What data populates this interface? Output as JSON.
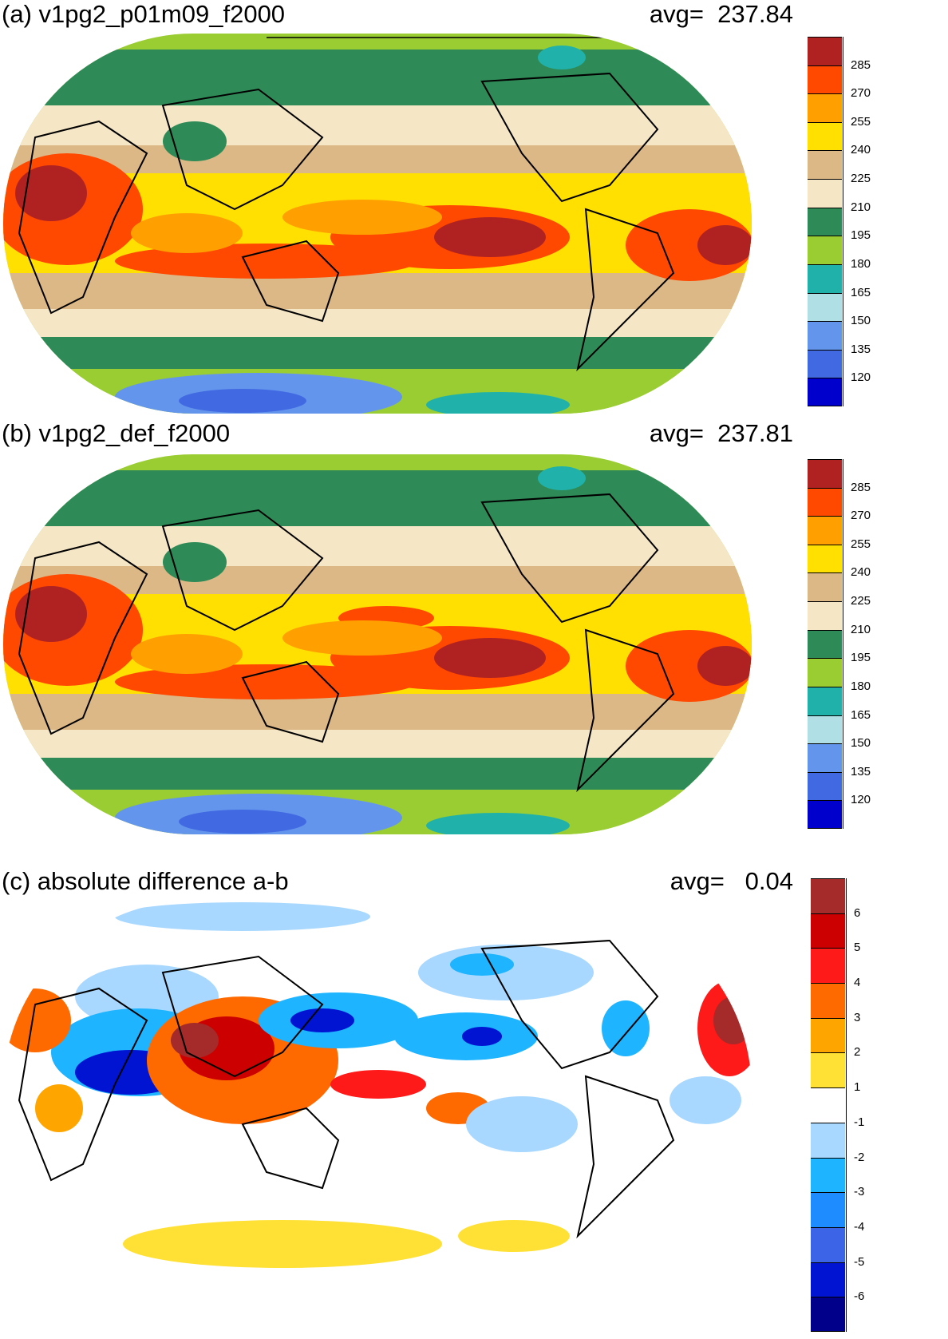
{
  "panels": [
    {
      "title": "(a) v1pg2_p01m09_f2000",
      "avg_label": "avg=",
      "avg_value": "237.84",
      "colorbar": {
        "labels": [
          "285",
          "270",
          "255",
          "240",
          "225",
          "210",
          "195",
          "180",
          "165",
          "150",
          "135",
          "120"
        ],
        "colors": [
          "#b02222",
          "#ff4800",
          "#ffa000",
          "#ffe000",
          "#ddb887",
          "#f5e6c6",
          "#2e8b57",
          "#9acd32",
          "#20b2aa",
          "#b0e0e6",
          "#6495ed",
          "#4169e1",
          "#0000cd"
        ]
      }
    },
    {
      "title": "(b) v1pg2_def_f2000",
      "avg_label": "avg=",
      "avg_value": "237.81",
      "colorbar": {
        "labels": [
          "285",
          "270",
          "255",
          "240",
          "225",
          "210",
          "195",
          "180",
          "165",
          "150",
          "135",
          "120"
        ],
        "colors": [
          "#b02222",
          "#ff4800",
          "#ffa000",
          "#ffe000",
          "#ddb887",
          "#f5e6c6",
          "#2e8b57",
          "#9acd32",
          "#20b2aa",
          "#b0e0e6",
          "#6495ed",
          "#4169e1",
          "#0000cd"
        ]
      }
    },
    {
      "title": "(c) absolute difference a-b",
      "avg_label": "avg=",
      "avg_value": "0.04",
      "colorbar": {
        "labels": [
          "6",
          "5",
          "4",
          "3",
          "2",
          "1",
          "-1",
          "-2",
          "-3",
          "-4",
          "-5",
          "-6"
        ],
        "colors": [
          "#a52a2a",
          "#cd0000",
          "#ff1a1a",
          "#ff6a00",
          "#ffa500",
          "#ffe135",
          "#ffffff",
          "#a8d8ff",
          "#1eb4ff",
          "#1e8cff",
          "#3c64e6",
          "#0014d2",
          "#00008b"
        ]
      }
    }
  ]
}
